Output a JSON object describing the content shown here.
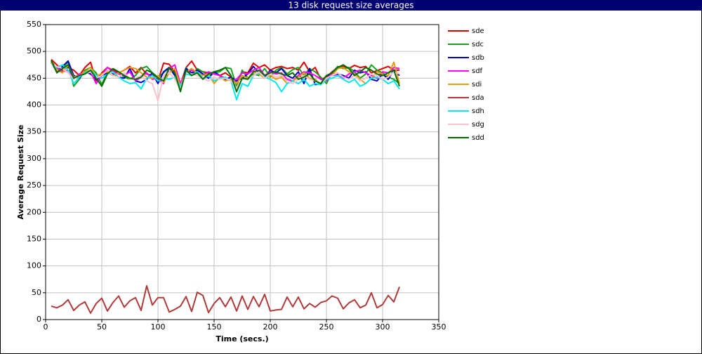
{
  "chart_data": {
    "type": "line",
    "title": "13 disk request size averages",
    "x_label": "Time (secs.)",
    "y_label": "Average Request Size",
    "xlim": [
      0,
      350
    ],
    "xticks": [
      0,
      50,
      100,
      150,
      200,
      250,
      300,
      350
    ],
    "ylim": [
      0,
      550
    ],
    "yticks": [
      0,
      50,
      100,
      150,
      200,
      250,
      300,
      350,
      400,
      450,
      500,
      550
    ],
    "grid": true,
    "legend": "right",
    "x": [
      5,
      10,
      15,
      20,
      25,
      30,
      35,
      40,
      45,
      50,
      55,
      60,
      65,
      70,
      75,
      80,
      85,
      90,
      95,
      100,
      105,
      110,
      115,
      120,
      125,
      130,
      135,
      140,
      145,
      150,
      155,
      160,
      165,
      170,
      175,
      180,
      185,
      190,
      195,
      200,
      205,
      210,
      215,
      220,
      225,
      230,
      235,
      240,
      245,
      250,
      255,
      260,
      265,
      270,
      275,
      280,
      285,
      290,
      295,
      300,
      305,
      310,
      315
    ],
    "series": [
      {
        "name": "sde",
        "color": "#e00000",
        "values": [
          485,
          475,
          465,
          470,
          465,
          455,
          470,
          480,
          445,
          460,
          470,
          465,
          460,
          465,
          472,
          460,
          470,
          458,
          455,
          445,
          478,
          476,
          462,
          438,
          470,
          482,
          465,
          462,
          460,
          458,
          455,
          460,
          452,
          440,
          462,
          460,
          478,
          470,
          475,
          465,
          470,
          472,
          468,
          470,
          465,
          480,
          462,
          470,
          448,
          452,
          462,
          470,
          472,
          468,
          474,
          470,
          472,
          460,
          464,
          468,
          472,
          465,
          465
        ]
      },
      {
        "name": "sdc",
        "color": "#1aa01a",
        "values": [
          482,
          468,
          470,
          480,
          435,
          448,
          465,
          470,
          460,
          438,
          462,
          455,
          460,
          452,
          448,
          455,
          468,
          472,
          460,
          452,
          460,
          470,
          458,
          430,
          470,
          455,
          468,
          462,
          455,
          460,
          462,
          470,
          468,
          435,
          465,
          450,
          458,
          455,
          468,
          452,
          465,
          470,
          458,
          466,
          470,
          455,
          468,
          462,
          452,
          440,
          460,
          472,
          468,
          470,
          462,
          450,
          458,
          475,
          465,
          460,
          452,
          448,
          440
        ]
      },
      {
        "name": "sdb",
        "color": "#0000c8",
        "values": [
          480,
          462,
          472,
          482,
          455,
          450,
          462,
          458,
          448,
          455,
          460,
          458,
          452,
          450,
          468,
          445,
          442,
          448,
          460,
          440,
          462,
          470,
          455,
          432,
          468,
          460,
          465,
          458,
          450,
          462,
          455,
          448,
          452,
          445,
          450,
          458,
          472,
          460,
          452,
          465,
          460,
          468,
          455,
          450,
          462,
          440,
          468,
          438,
          440,
          455,
          455,
          458,
          455,
          450,
          465,
          460,
          462,
          448,
          445,
          458,
          448,
          465,
          455
        ]
      },
      {
        "name": "sdf",
        "color": "#ff00ff",
        "values": [
          478,
          470,
          462,
          465,
          450,
          458,
          460,
          462,
          440,
          455,
          470,
          462,
          458,
          455,
          462,
          445,
          452,
          460,
          448,
          450,
          440,
          468,
          475,
          440,
          462,
          465,
          460,
          455,
          462,
          458,
          455,
          450,
          445,
          448,
          460,
          458,
          465,
          470,
          455,
          462,
          458,
          460,
          448,
          445,
          455,
          462,
          460,
          455,
          448,
          445,
          460,
          455,
          450,
          458,
          462,
          465,
          460,
          455,
          450,
          462,
          460,
          470,
          468
        ]
      },
      {
        "name": "sdi",
        "color": "#e89a10",
        "values": [
          480,
          465,
          460,
          475,
          452,
          455,
          462,
          470,
          455,
          458,
          462,
          455,
          460,
          465,
          470,
          468,
          460,
          452,
          450,
          455,
          442,
          460,
          468,
          435,
          462,
          468,
          460,
          455,
          458,
          440,
          452,
          445,
          448,
          440,
          455,
          450,
          462,
          458,
          450,
          455,
          448,
          452,
          440,
          445,
          452,
          460,
          450,
          448,
          438,
          450,
          455,
          468,
          470,
          462,
          458,
          448,
          440,
          450,
          462,
          458,
          455,
          480,
          440
        ]
      },
      {
        "name": "sda",
        "color": "#b03a3a",
        "values": [
          25,
          22,
          27,
          37,
          17,
          27,
          33,
          12,
          30,
          40,
          16,
          32,
          44,
          23,
          35,
          41,
          17,
          63,
          27,
          41,
          41,
          14,
          19,
          25,
          43,
          15,
          51,
          45,
          13,
          30,
          41,
          24,
          42,
          16,
          44,
          19,
          43,
          24,
          47,
          16,
          18,
          19,
          42,
          24,
          42,
          20,
          30,
          23,
          32,
          35,
          44,
          40,
          20,
          31,
          37,
          22,
          27,
          50,
          22,
          28,
          45,
          33,
          61
        ]
      },
      {
        "name": "sdh",
        "color": "#00e8f0",
        "values": [
          478,
          470,
          475,
          465,
          440,
          452,
          460,
          465,
          455,
          450,
          458,
          462,
          452,
          445,
          440,
          442,
          430,
          450,
          455,
          445,
          450,
          448,
          452,
          435,
          458,
          455,
          462,
          450,
          455,
          445,
          450,
          452,
          445,
          410,
          440,
          435,
          455,
          460,
          452,
          448,
          442,
          425,
          440,
          445,
          440,
          448,
          435,
          440,
          438,
          448,
          450,
          455,
          448,
          442,
          448,
          435,
          440,
          450,
          452,
          448,
          440,
          445,
          430
        ]
      },
      {
        "name": "sdg",
        "color": "#ffc0cb",
        "values": [
          476,
          472,
          468,
          460,
          448,
          455,
          458,
          462,
          450,
          455,
          465,
          455,
          452,
          460,
          448,
          450,
          455,
          445,
          440,
          408,
          455,
          460,
          448,
          430,
          462,
          458,
          455,
          450,
          445,
          452,
          448,
          450,
          445,
          432,
          450,
          448,
          455,
          462,
          450,
          458,
          452,
          455,
          445,
          440,
          448,
          455,
          448,
          445,
          440,
          450,
          455,
          460,
          452,
          448,
          455,
          445,
          450,
          458,
          455,
          448,
          452,
          462,
          458
        ]
      },
      {
        "name": "sdd",
        "color": "#006e00",
        "values": [
          483,
          460,
          468,
          475,
          450,
          455,
          458,
          465,
          450,
          435,
          458,
          468,
          462,
          455,
          450,
          448,
          452,
          465,
          460,
          450,
          445,
          470,
          460,
          425,
          465,
          455,
          460,
          448,
          458,
          462,
          465,
          470,
          455,
          425,
          450,
          448,
          462,
          465,
          455,
          460,
          462,
          458,
          455,
          460,
          448,
          452,
          458,
          445,
          440,
          455,
          460,
          470,
          475,
          468,
          455,
          462,
          470,
          465,
          458,
          455,
          460,
          465,
          435
        ]
      }
    ]
  }
}
